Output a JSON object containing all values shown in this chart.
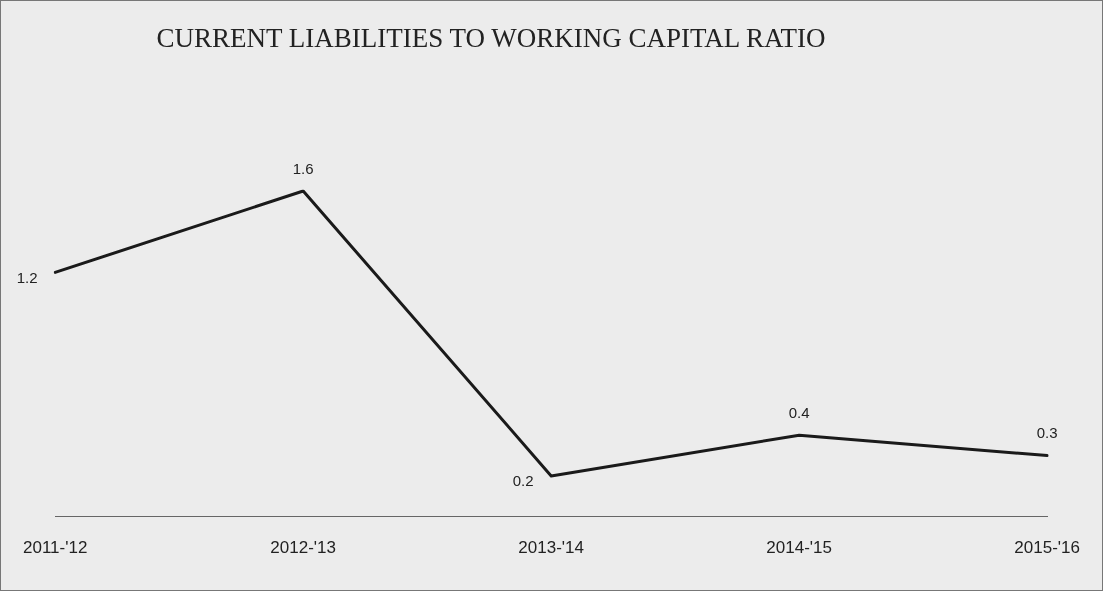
{
  "chart_data": {
    "type": "line",
    "title": "CURRENT LIABILITIES TO WORKING CAPITAL RATIO",
    "categories": [
      "2011-'12",
      "2012-'13",
      "2013-'14",
      "2014-'15",
      "2015-'16"
    ],
    "series": [
      {
        "color": "#1a1a1a",
        "values": [
          1.2,
          1.6,
          0.2,
          0.4,
          0.3
        ]
      }
    ],
    "data_labels": true,
    "grid": false,
    "legend": false,
    "marker": "none",
    "line_style": "solid"
  }
}
